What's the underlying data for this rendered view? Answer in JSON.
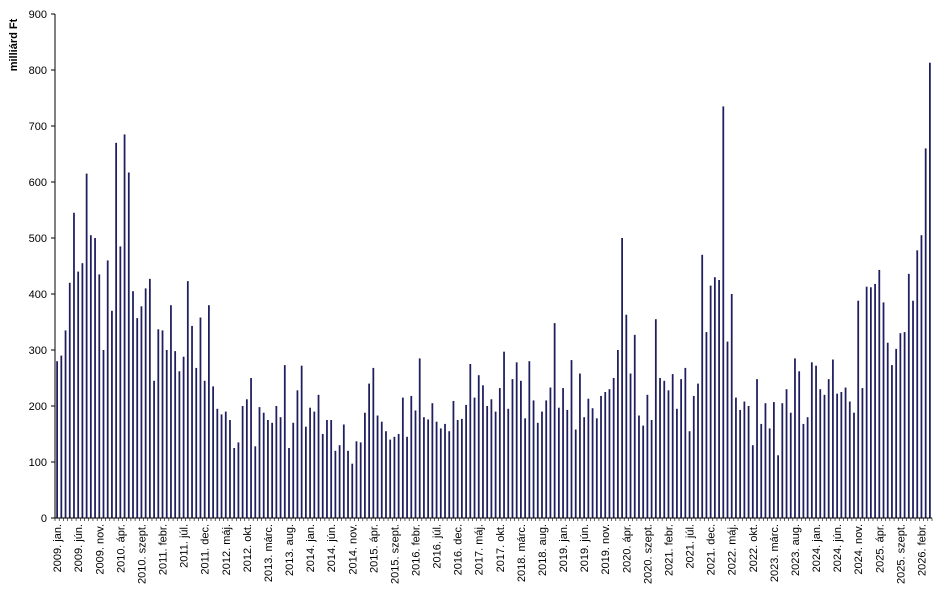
{
  "chart_data": {
    "type": "bar",
    "ylabel": "milliárd Ft",
    "ylim": [
      0,
      900
    ],
    "yticks": [
      0,
      100,
      200,
      300,
      400,
      500,
      600,
      700,
      800,
      900
    ],
    "grid": false,
    "bar_color": "#1f1f5f",
    "xtick_labels": [
      "2009. jan.",
      "2009. jún.",
      "2009. nov.",
      "2010. ápr.",
      "2010. szept.",
      "2011. febr.",
      "2011. júl.",
      "2011. dec.",
      "2012. máj.",
      "2012. okt.",
      "2013. márc.",
      "2013. aug.",
      "2014. jan.",
      "2014. jún.",
      "2014. nov.",
      "2015. ápr.",
      "2015. szept.",
      "2016. febr.",
      "2016. júl.",
      "2016. dec.",
      "2017. máj.",
      "2017. okt.",
      "2018. márc.",
      "2018. aug.",
      "2019. jan.",
      "2019. jún.",
      "2019. nov.",
      "2020. ápr.",
      "2020. szept.",
      "2021. febr.",
      "2021. júl.",
      "2021. dec.",
      "2022. máj.",
      "2022. okt.",
      "2023. márc.",
      "2023. aug.",
      "2024. jan.",
      "2024. jún.",
      "2024. nov.",
      "2025. ápr.",
      "2025. szept.",
      "2026. febr."
    ],
    "values": [
      280,
      290,
      335,
      420,
      545,
      440,
      455,
      615,
      505,
      500,
      435,
      300,
      460,
      370,
      670,
      485,
      685,
      617,
      405,
      357,
      378,
      410,
      427,
      245,
      337,
      335,
      300,
      380,
      298,
      262,
      288,
      423,
      343,
      268,
      358,
      245,
      380,
      235,
      195,
      185,
      190,
      175,
      125,
      135,
      200,
      212,
      250,
      128,
      198,
      188,
      175,
      170,
      200,
      180,
      273,
      125,
      170,
      228,
      272,
      163,
      197,
      190,
      220,
      150,
      175,
      175,
      120,
      130,
      167,
      120,
      97,
      137,
      135,
      188,
      240,
      268,
      183,
      172,
      155,
      140,
      145,
      150,
      215,
      145,
      218,
      192,
      285,
      180,
      176,
      205,
      172,
      160,
      168,
      155,
      209,
      175,
      177,
      202,
      275,
      215,
      255,
      237,
      200,
      212,
      190,
      232,
      297,
      195,
      248,
      278,
      245,
      178,
      280,
      210,
      170,
      190,
      210,
      233,
      348,
      197,
      232,
      193,
      282,
      158,
      258,
      180,
      213,
      196,
      178,
      218,
      225,
      230,
      250,
      300,
      500,
      363,
      258,
      327,
      183,
      165,
      220,
      175,
      355,
      250,
      245,
      228,
      257,
      195,
      248,
      268,
      155,
      218,
      240,
      470,
      332,
      415,
      430,
      425,
      735,
      315,
      400,
      215,
      193,
      208,
      200,
      130,
      248,
      168,
      205,
      160,
      207,
      112,
      205,
      230,
      188,
      285,
      262,
      168,
      180,
      278,
      272,
      230,
      220,
      248,
      283,
      222,
      225,
      233,
      208,
      188,
      388,
      232,
      413,
      412,
      418,
      443,
      385,
      313,
      273,
      302,
      330,
      332,
      436,
      388,
      478,
      505,
      660,
      813
    ]
  }
}
